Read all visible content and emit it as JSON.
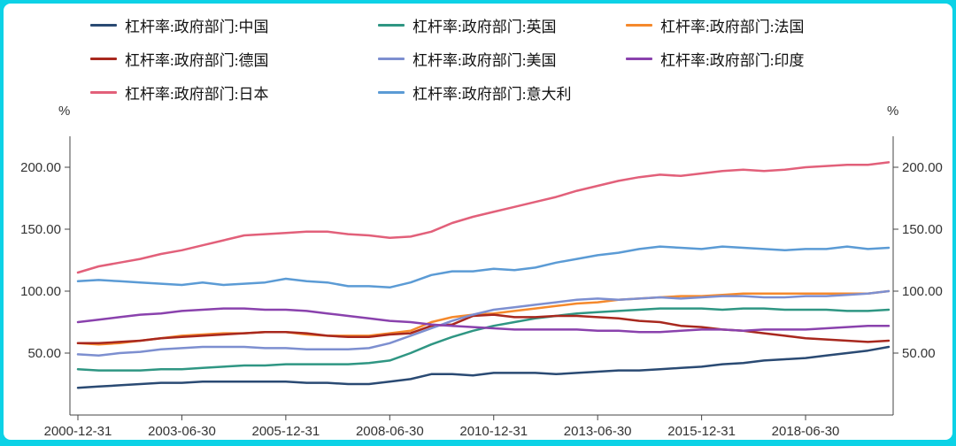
{
  "colors": {
    "frame": "#0cd2e6",
    "panel": "#ffffff",
    "axis": "#444444",
    "tick_text": "#333333",
    "legend_text": "#111111"
  },
  "chart_data": {
    "type": "line",
    "title": "",
    "unit_label_left": "%",
    "unit_label_right": "%",
    "grid": false,
    "legend_position": "top",
    "ylim": [
      0,
      225
    ],
    "y_ticks": [
      50,
      100,
      150,
      200
    ],
    "y_tick_labels": [
      "50.00",
      "100.00",
      "150.00",
      "200.00"
    ],
    "x_tick_labels": [
      "2000-12-31",
      "2003-06-30",
      "2005-12-31",
      "2008-06-30",
      "2010-12-31",
      "2013-06-30",
      "2015-12-31",
      "2018-06-30"
    ],
    "x_tick_indices": [
      0,
      5,
      10,
      15,
      20,
      25,
      30,
      35
    ],
    "x": [
      "2000-12-31",
      "2001-06-30",
      "2001-12-31",
      "2002-06-30",
      "2002-12-31",
      "2003-06-30",
      "2003-12-31",
      "2004-06-30",
      "2004-12-31",
      "2005-06-30",
      "2005-12-31",
      "2006-06-30",
      "2006-12-31",
      "2007-06-30",
      "2007-12-31",
      "2008-06-30",
      "2008-12-31",
      "2009-06-30",
      "2009-12-31",
      "2010-06-30",
      "2010-12-31",
      "2011-06-30",
      "2011-12-31",
      "2012-06-30",
      "2012-12-31",
      "2013-06-30",
      "2013-12-31",
      "2014-06-30",
      "2014-12-31",
      "2015-06-30",
      "2015-12-31",
      "2016-06-30",
      "2016-12-31",
      "2017-06-30",
      "2017-12-31",
      "2018-06-30",
      "2018-12-31",
      "2019-06-30",
      "2019-12-31",
      "2020-06-30"
    ],
    "series": [
      {
        "name": "杠杆率:政府部门:中国",
        "color": "#2a4a73",
        "values": [
          22,
          23,
          24,
          25,
          26,
          26,
          27,
          27,
          27,
          27,
          27,
          26,
          26,
          25,
          25,
          27,
          29,
          33,
          33,
          32,
          34,
          34,
          34,
          33,
          34,
          35,
          36,
          36,
          37,
          38,
          39,
          41,
          42,
          44,
          45,
          46,
          48,
          50,
          52,
          55
        ]
      },
      {
        "name": "杠杆率:政府部门:英国",
        "color": "#2f9683",
        "values": [
          37,
          36,
          36,
          36,
          37,
          37,
          38,
          39,
          40,
          40,
          41,
          41,
          41,
          41,
          42,
          44,
          50,
          57,
          63,
          68,
          72,
          75,
          78,
          80,
          82,
          83,
          84,
          85,
          86,
          86,
          86,
          85,
          86,
          86,
          85,
          85,
          85,
          84,
          84,
          85
        ]
      },
      {
        "name": "杠杆率:政府部门:法国",
        "color": "#f5892c",
        "values": [
          58,
          57,
          58,
          60,
          62,
          64,
          65,
          66,
          66,
          67,
          67,
          65,
          64,
          64,
          64,
          66,
          68,
          75,
          79,
          81,
          82,
          84,
          86,
          88,
          90,
          91,
          93,
          94,
          95,
          96,
          96,
          97,
          98,
          98,
          98,
          98,
          98,
          98,
          98,
          100
        ]
      },
      {
        "name": "杠杆率:政府部门:德国",
        "color": "#a8281e",
        "values": [
          58,
          58,
          59,
          60,
          62,
          63,
          64,
          65,
          66,
          67,
          67,
          66,
          64,
          63,
          63,
          65,
          66,
          72,
          73,
          80,
          81,
          79,
          79,
          80,
          80,
          79,
          78,
          76,
          75,
          72,
          71,
          69,
          68,
          66,
          64,
          62,
          61,
          60,
          59,
          60
        ]
      },
      {
        "name": "杠杆率:政府部门:美国",
        "color": "#7d8fd0",
        "values": [
          49,
          48,
          50,
          51,
          53,
          54,
          55,
          55,
          55,
          54,
          54,
          53,
          53,
          53,
          54,
          58,
          64,
          70,
          76,
          81,
          85,
          87,
          89,
          91,
          93,
          94,
          93,
          94,
          95,
          94,
          95,
          96,
          96,
          95,
          95,
          96,
          96,
          97,
          98,
          100
        ]
      },
      {
        "name": "杠杆率:政府部门:印度",
        "color": "#8a42ad",
        "values": [
          75,
          77,
          79,
          81,
          82,
          84,
          85,
          86,
          86,
          85,
          85,
          84,
          82,
          80,
          78,
          76,
          75,
          73,
          72,
          71,
          70,
          69,
          69,
          69,
          69,
          68,
          68,
          67,
          67,
          68,
          69,
          69,
          68,
          69,
          69,
          69,
          70,
          71,
          72,
          72
        ]
      },
      {
        "name": "杠杆率:政府部门:日本",
        "color": "#e2607a",
        "values": [
          115,
          120,
          123,
          126,
          130,
          133,
          137,
          141,
          145,
          146,
          147,
          148,
          148,
          146,
          145,
          143,
          144,
          148,
          155,
          160,
          164,
          168,
          172,
          176,
          181,
          185,
          189,
          192,
          194,
          193,
          195,
          197,
          198,
          197,
          198,
          200,
          201,
          202,
          202,
          204
        ]
      },
      {
        "name": "杠杆率:政府部门:意大利",
        "color": "#5b9bd5",
        "values": [
          108,
          109,
          108,
          107,
          106,
          105,
          107,
          105,
          106,
          107,
          110,
          108,
          107,
          104,
          104,
          103,
          107,
          113,
          116,
          116,
          118,
          117,
          119,
          123,
          126,
          129,
          131,
          134,
          136,
          135,
          134,
          136,
          135,
          134,
          133,
          134,
          134,
          136,
          134,
          135
        ]
      }
    ]
  }
}
